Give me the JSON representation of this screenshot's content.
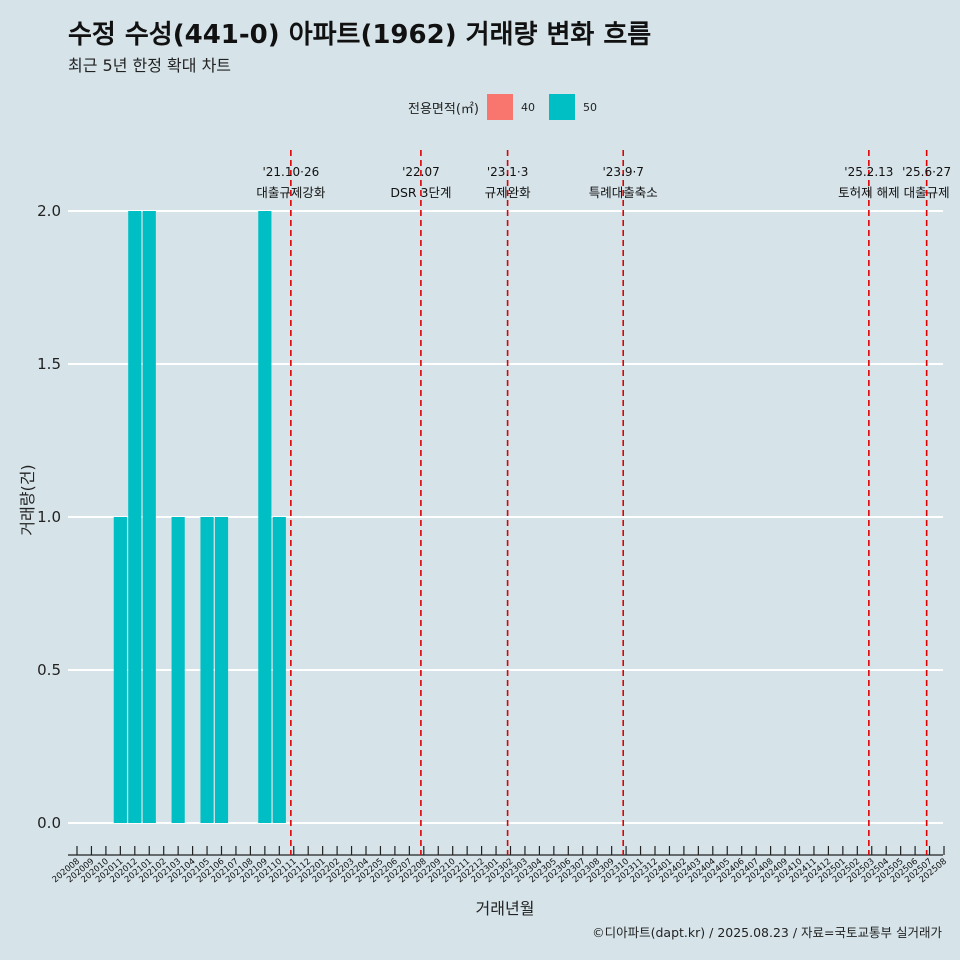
{
  "title": "수정 수성(441-0) 아파트(1962) 거래량 변화 흐름",
  "subtitle": "최근 5년 한정 확대 차트",
  "legend": {
    "title": "전용면적(㎡)",
    "items": [
      {
        "label": "40",
        "color": "#f8766d"
      },
      {
        "label": "50",
        "color": "#00bfc4"
      }
    ]
  },
  "caption": "©디아파트(dapt.kr) / 2025.08.23 / 자료=국토교통부 실거래가",
  "chart_data": {
    "type": "bar",
    "title": "수정 수성(441-0) 아파트(1962) 거래량 변화 흐름",
    "subtitle": "최근 5년 한정 확대 차트",
    "xlabel": "거래년월",
    "ylabel": "거래량(건)",
    "ylim": [
      0,
      2
    ],
    "yticks": [
      "0.0",
      "0.5",
      "1.0",
      "1.5",
      "2.0"
    ],
    "grid": true,
    "legend_position": "top",
    "categories": [
      "202008",
      "202009",
      "202010",
      "202011",
      "202012",
      "202101",
      "202102",
      "202103",
      "202104",
      "202105",
      "202106",
      "202107",
      "202108",
      "202109",
      "202110",
      "202111",
      "202112",
      "202201",
      "202202",
      "202203",
      "202204",
      "202205",
      "202206",
      "202207",
      "202208",
      "202209",
      "202210",
      "202211",
      "202212",
      "202301",
      "202302",
      "202303",
      "202304",
      "202305",
      "202306",
      "202307",
      "202308",
      "202309",
      "202310",
      "202311",
      "202312",
      "202401",
      "202402",
      "202403",
      "202404",
      "202405",
      "202406",
      "202407",
      "202408",
      "202409",
      "202410",
      "202411",
      "202412",
      "202501",
      "202502",
      "202503",
      "202504",
      "202505",
      "202506",
      "202507",
      "202508"
    ],
    "series": [
      {
        "name": "50",
        "color": "#00bfc4",
        "values": [
          0,
          0,
          0,
          1,
          2,
          2,
          0,
          1,
          0,
          1,
          1,
          0,
          0,
          2,
          1,
          0,
          0,
          0,
          0,
          0,
          0,
          0,
          0,
          0,
          0,
          0,
          0,
          0,
          0,
          0,
          0,
          0,
          0,
          0,
          0,
          0,
          0,
          0,
          0,
          0,
          0,
          0,
          0,
          0,
          0,
          0,
          0,
          0,
          0,
          0,
          0,
          0,
          0,
          0,
          0,
          0,
          0,
          0,
          0,
          0,
          0
        ]
      }
    ],
    "annotations": [
      {
        "date_index": 14.8,
        "line1": "'21.10·26",
        "line2": "대출규제강화"
      },
      {
        "date_index": 23.8,
        "line1": "'22.07",
        "line2": "DSR 3단계"
      },
      {
        "date_index": 29.8,
        "line1": "'23.1·3",
        "line2": "규제완화"
      },
      {
        "date_index": 37.8,
        "line1": "'23.9·7",
        "line2": "특례대출축소"
      },
      {
        "date_index": 54.8,
        "line1": "'25.2.13",
        "line2": "토허제 해제"
      },
      {
        "date_index": 58.8,
        "line1": "'25.6·27",
        "line2": "대출규제"
      }
    ]
  }
}
